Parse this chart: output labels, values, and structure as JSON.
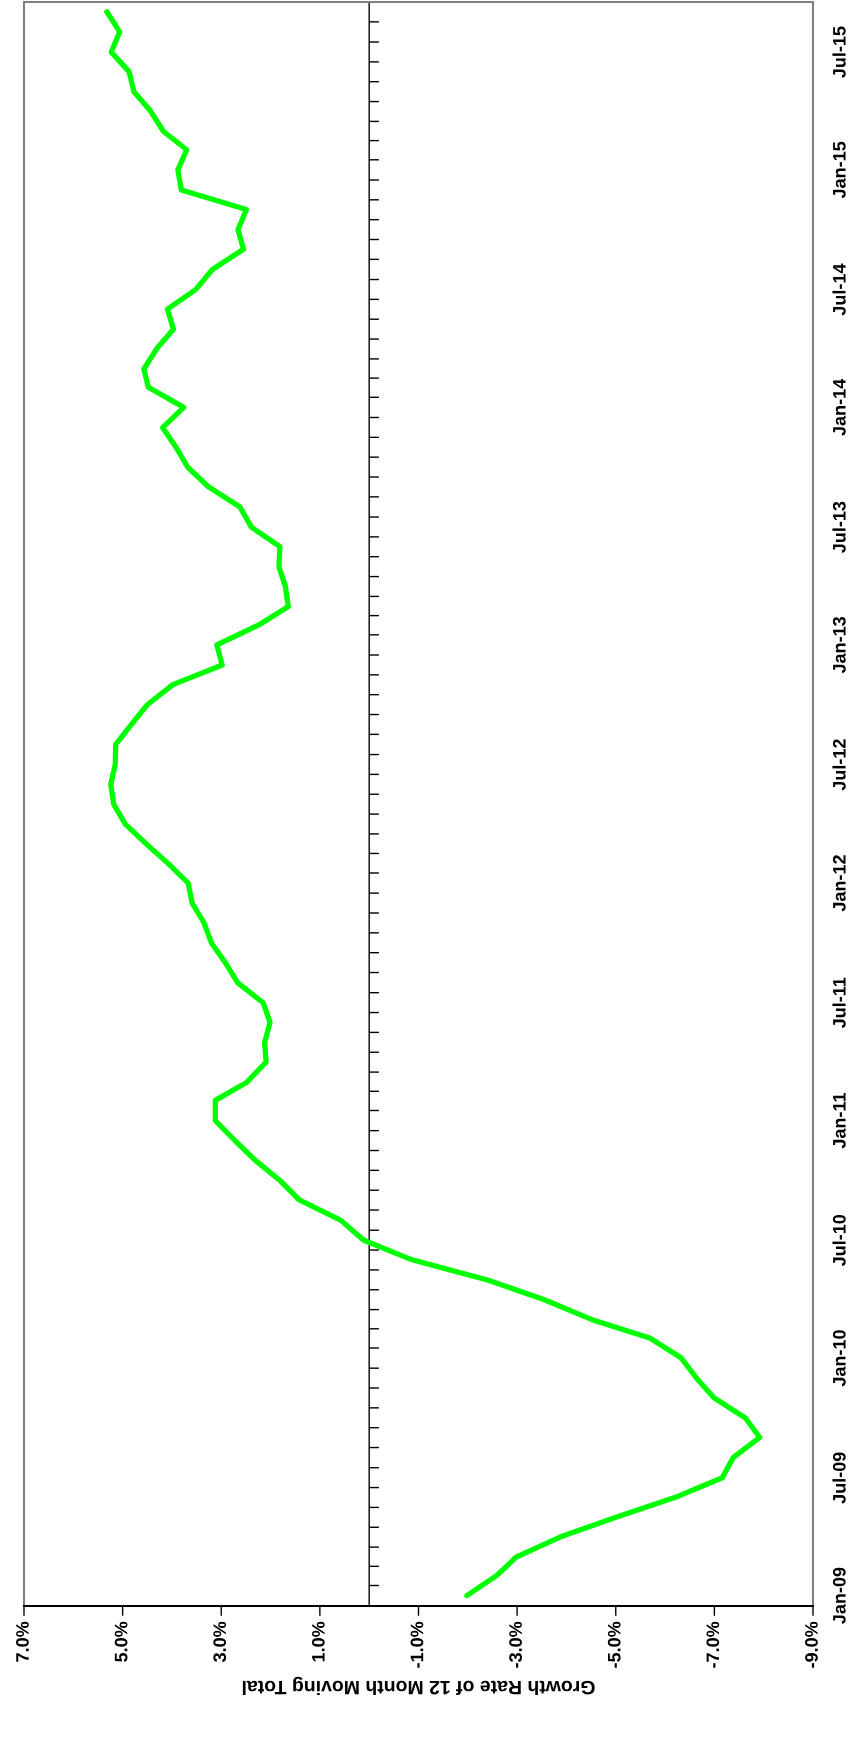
{
  "chart_data": {
    "type": "line",
    "orientation": "horizontal",
    "xlabel": "Growth Rate of 12 Month Moving Total",
    "x": [
      "2009-01",
      "2009-02",
      "2009-03",
      "2009-04",
      "2009-05",
      "2009-06",
      "2009-07",
      "2009-08",
      "2009-09",
      "2009-10",
      "2009-11",
      "2009-12",
      "2010-01",
      "2010-02",
      "2010-03",
      "2010-04",
      "2010-05",
      "2010-06",
      "2010-07",
      "2010-08",
      "2010-09",
      "2010-10",
      "2010-11",
      "2010-12",
      "2011-01",
      "2011-02",
      "2011-03",
      "2011-04",
      "2011-05",
      "2011-06",
      "2011-07",
      "2011-08",
      "2011-09",
      "2011-10",
      "2011-11",
      "2011-12",
      "2012-01",
      "2012-02",
      "2012-03",
      "2012-04",
      "2012-05",
      "2012-06",
      "2012-07",
      "2012-08",
      "2012-09",
      "2012-10",
      "2012-11",
      "2012-12",
      "2013-01",
      "2013-02",
      "2013-03",
      "2013-04",
      "2013-05",
      "2013-06",
      "2013-07",
      "2013-08",
      "2013-09",
      "2013-10",
      "2013-11",
      "2013-12",
      "2014-01",
      "2014-02",
      "2014-03",
      "2014-04",
      "2014-05",
      "2014-06",
      "2014-07",
      "2014-08",
      "2014-09",
      "2014-10",
      "2014-11",
      "2014-12",
      "2015-01",
      "2015-02",
      "2015-03",
      "2015-04",
      "2015-05",
      "2015-06",
      "2015-07",
      "2015-08",
      "2015-09"
    ],
    "series": [
      {
        "color": "#00ff00",
        "values": [
          -1.98,
          -2.59,
          -2.98,
          -3.87,
          -4.99,
          -6.21,
          -7.16,
          -7.38,
          -7.92,
          -7.63,
          -6.99,
          -6.64,
          -6.33,
          -5.69,
          -4.52,
          -3.54,
          -2.4,
          -0.87,
          0.11,
          0.58,
          1.42,
          1.81,
          2.31,
          2.72,
          3.12,
          3.12,
          2.48,
          2.09,
          2.12,
          2.01,
          2.15,
          2.67,
          2.92,
          3.2,
          3.35,
          3.59,
          3.67,
          4.09,
          4.52,
          4.95,
          5.18,
          5.24,
          5.15,
          5.14,
          4.82,
          4.5,
          3.98,
          2.98,
          3.09,
          2.23,
          1.64,
          1.7,
          1.83,
          1.81,
          2.39,
          2.62,
          3.26,
          3.68,
          3.92,
          4.19,
          3.76,
          4.48,
          4.57,
          4.31,
          3.97,
          4.09,
          3.52,
          3.18,
          2.55,
          2.66,
          2.49,
          3.81,
          3.88,
          3.7,
          4.17,
          4.43,
          4.77,
          4.87,
          5.23,
          5.06,
          5.32
        ]
      }
    ],
    "ylim": [
      "2008-12-16",
      "2015-09-16"
    ],
    "yticks": [
      {
        "value": "2009-01",
        "label": "Jan-09"
      },
      {
        "value": "2009-07",
        "label": "Jul-09"
      },
      {
        "value": "2010-01",
        "label": "Jan-10"
      },
      {
        "value": "2010-07",
        "label": "Jul-10"
      },
      {
        "value": "2011-01",
        "label": "Jan-11"
      },
      {
        "value": "2011-07",
        "label": "Jul-11"
      },
      {
        "value": "2012-01",
        "label": "Jan-12"
      },
      {
        "value": "2012-07",
        "label": "Jul-12"
      },
      {
        "value": "2013-01",
        "label": "Jan-13"
      },
      {
        "value": "2013-07",
        "label": "Jul-13"
      },
      {
        "value": "2014-01",
        "label": "Jan-14"
      },
      {
        "value": "2014-07",
        "label": "Jul-14"
      },
      {
        "value": "2015-01",
        "label": "Jan-15"
      },
      {
        "value": "2015-07",
        "label": "Jul-15"
      }
    ],
    "xlim": [
      7,
      -9
    ],
    "xticks": [
      {
        "value": 7,
        "label": "7.0%"
      },
      {
        "value": 5,
        "label": "5.0%"
      },
      {
        "value": 3,
        "label": "3.0%"
      },
      {
        "value": 1,
        "label": "1.0%"
      },
      {
        "value": -1,
        "label": "-1.0%"
      },
      {
        "value": -3,
        "label": "-3.0%"
      },
      {
        "value": -5,
        "label": "-5.0%"
      },
      {
        "value": -7,
        "label": "-7.0%"
      },
      {
        "value": -9,
        "label": "-9.0%"
      }
    ],
    "ref_lines": [
      {
        "axis": "x",
        "value": 0,
        "color": "#000000"
      }
    ],
    "marker": "none",
    "line_style": "solid",
    "grid": false,
    "legend": false
  }
}
